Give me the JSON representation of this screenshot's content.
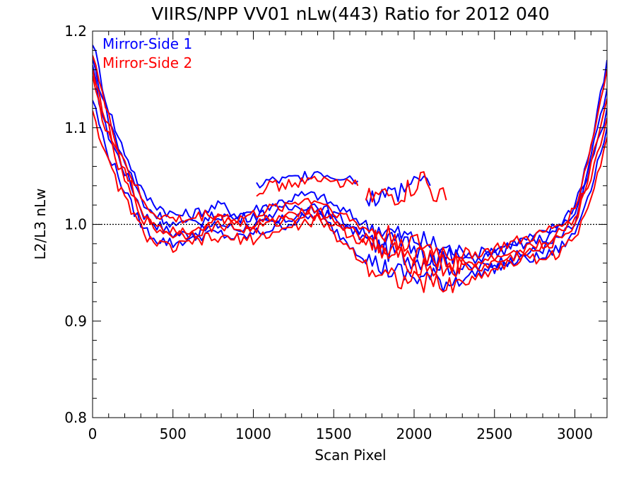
{
  "chart_data": {
    "type": "line",
    "title": "VIIRS/NPP VV01 nLw(443) Ratio for 2012 040",
    "xlabel": "Scan Pixel",
    "ylabel": "L2/L3 nLw",
    "xlim": [
      0,
      3200
    ],
    "ylim": [
      0.8,
      1.2
    ],
    "x_ticks": [
      {
        "value": 0,
        "label": "0"
      },
      {
        "value": 500,
        "label": "500"
      },
      {
        "value": 1000,
        "label": "1000"
      },
      {
        "value": 1500,
        "label": "1500"
      },
      {
        "value": 2000,
        "label": "2000"
      },
      {
        "value": 2500,
        "label": "2500"
      },
      {
        "value": 3000,
        "label": "3000"
      }
    ],
    "y_ticks": [
      {
        "value": 0.8,
        "label": "0.8"
      },
      {
        "value": 0.9,
        "label": "0.9"
      },
      {
        "value": 1.0,
        "label": "1.0"
      },
      {
        "value": 1.1,
        "label": "1.1"
      },
      {
        "value": 1.2,
        "label": "1.2"
      }
    ],
    "reference_line": {
      "y": 1.0,
      "style": "dotted",
      "color": "#000000"
    },
    "grid": false,
    "legend_position": "top-left",
    "legend": [
      {
        "label": "Mirror-Side 1",
        "color": "#0000ff"
      },
      {
        "label": "Mirror-Side 2",
        "color": "#ff0000"
      }
    ],
    "series": [
      {
        "mirror_side": 1,
        "color": "#0000ff",
        "x": [
          0,
          80,
          160,
          240,
          320,
          400,
          500,
          600,
          700,
          800,
          900,
          1000,
          1100,
          1200,
          1300,
          1400,
          1500,
          1600,
          1700,
          1800,
          1900,
          2000,
          2100,
          2200,
          2300,
          2400,
          2500,
          2600,
          2700,
          2800,
          2900,
          3000,
          3100,
          3200
        ],
        "y": [
          1.16,
          1.1,
          1.07,
          1.04,
          1.01,
          1.0,
          0.99,
          0.99,
          0.995,
          1.0,
          0.995,
          1.0,
          1.0,
          1.005,
          1.01,
          1.015,
          1.005,
          0.995,
          0.985,
          0.975,
          0.97,
          0.965,
          0.965,
          0.96,
          0.955,
          0.955,
          0.96,
          0.965,
          0.97,
          0.975,
          0.985,
          1.0,
          1.06,
          1.12
        ]
      },
      {
        "mirror_side": 1,
        "color": "#0000ff",
        "x": [
          0,
          80,
          160,
          240,
          320,
          400,
          500,
          600,
          700,
          800,
          900,
          1000,
          1100,
          1200,
          1300,
          1400,
          1500,
          1600,
          1700,
          1800,
          1900,
          2000,
          2100,
          2200,
          2300,
          2400,
          2500,
          2600,
          2700,
          2800,
          2900,
          3000,
          3100,
          3200
        ],
        "y": [
          1.19,
          1.13,
          1.09,
          1.06,
          1.03,
          1.02,
          1.01,
          1.01,
          1.015,
          1.02,
          1.01,
          1.015,
          1.02,
          1.025,
          1.03,
          1.03,
          1.02,
          1.01,
          1.0,
          0.995,
          0.99,
          0.985,
          0.98,
          0.975,
          0.97,
          0.97,
          0.975,
          0.98,
          0.985,
          0.99,
          1.0,
          1.02,
          1.08,
          1.17
        ]
      },
      {
        "mirror_side": 1,
        "color": "#0000ff",
        "x": [
          0,
          80,
          160,
          240,
          320,
          400,
          500,
          600,
          700,
          800,
          900,
          1000,
          1100,
          1200,
          1300,
          1400,
          1500,
          1600,
          1700,
          1800,
          1900,
          2000,
          2100,
          2200,
          2300,
          2400,
          2500,
          2600,
          2700,
          2800,
          2900,
          3000,
          3100,
          3200
        ],
        "y": [
          1.13,
          1.08,
          1.05,
          1.02,
          0.995,
          0.985,
          0.98,
          0.985,
          0.99,
          0.99,
          0.985,
          0.99,
          0.995,
          1.0,
          1.005,
          1.01,
          0.995,
          0.98,
          0.965,
          0.955,
          0.95,
          0.945,
          0.945,
          0.94,
          0.945,
          0.95,
          0.955,
          0.96,
          0.965,
          0.965,
          0.975,
          0.99,
          1.04,
          1.1
        ]
      },
      {
        "mirror_side": 1,
        "color": "#0000ff",
        "x": [
          0,
          80,
          160,
          240,
          320,
          400,
          500,
          600,
          700,
          800,
          900,
          1000,
          1100,
          1200,
          1300,
          1400,
          1500,
          1600,
          1700,
          1800,
          1900,
          2000,
          2100,
          2200,
          2300,
          2400,
          2500,
          2600,
          2700,
          2800,
          2900,
          3000,
          3100,
          3200
        ],
        "y": [
          1.17,
          1.12,
          1.08,
          1.05,
          1.02,
          1.01,
          1.0,
          1.0,
          1.005,
          1.01,
          1.005,
          1.01,
          1.01,
          1.015,
          1.02,
          1.02,
          1.01,
          1.0,
          0.99,
          0.985,
          0.98,
          0.975,
          0.97,
          0.965,
          0.965,
          0.965,
          0.97,
          0.975,
          0.98,
          0.985,
          0.995,
          1.01,
          1.07,
          1.14
        ]
      },
      {
        "mirror_side": 2,
        "color": "#ff0000",
        "x": [
          0,
          80,
          160,
          240,
          320,
          400,
          500,
          600,
          700,
          800,
          900,
          1000,
          1100,
          1200,
          1300,
          1400,
          1500,
          1600,
          1700,
          1800,
          1900,
          2000,
          2100,
          2200,
          2300,
          2400,
          2500,
          2600,
          2700,
          2800,
          2900,
          3000,
          3100,
          3200
        ],
        "y": [
          1.15,
          1.1,
          1.06,
          1.03,
          1.005,
          0.995,
          0.99,
          0.99,
          0.995,
          1.0,
          0.995,
          0.995,
          1.0,
          1.005,
          1.01,
          1.01,
          1.0,
          0.99,
          0.98,
          0.97,
          0.965,
          0.96,
          0.955,
          0.955,
          0.955,
          0.955,
          0.96,
          0.965,
          0.97,
          0.975,
          0.985,
          1.0,
          1.05,
          1.11
        ]
      },
      {
        "mirror_side": 2,
        "color": "#ff0000",
        "x": [
          0,
          80,
          160,
          240,
          320,
          400,
          500,
          600,
          700,
          800,
          900,
          1000,
          1100,
          1200,
          1300,
          1400,
          1500,
          1600,
          1700,
          1800,
          1900,
          2000,
          2100,
          2200,
          2300,
          2400,
          2500,
          2600,
          2700,
          2800,
          2900,
          3000,
          3100,
          3200
        ],
        "y": [
          1.18,
          1.12,
          1.08,
          1.05,
          1.02,
          1.01,
          1.005,
          1.005,
          1.01,
          1.01,
          1.005,
          1.01,
          1.015,
          1.02,
          1.025,
          1.025,
          1.015,
          1.005,
          0.995,
          0.99,
          0.985,
          0.98,
          0.975,
          0.97,
          0.97,
          0.97,
          0.975,
          0.98,
          0.985,
          0.99,
          1.0,
          1.015,
          1.08,
          1.16
        ]
      },
      {
        "mirror_side": 2,
        "color": "#ff0000",
        "x": [
          0,
          80,
          160,
          240,
          320,
          400,
          500,
          600,
          700,
          800,
          900,
          1000,
          1100,
          1200,
          1300,
          1400,
          1500,
          1600,
          1700,
          1800,
          1900,
          2000,
          2100,
          2200,
          2300,
          2400,
          2500,
          2600,
          2700,
          2800,
          2900,
          3000,
          3100,
          3200
        ],
        "y": [
          1.12,
          1.07,
          1.04,
          1.015,
          0.99,
          0.98,
          0.975,
          0.98,
          0.985,
          0.985,
          0.985,
          0.985,
          0.99,
          0.995,
          1.0,
          1.005,
          0.99,
          0.975,
          0.96,
          0.95,
          0.945,
          0.94,
          0.94,
          0.935,
          0.94,
          0.945,
          0.955,
          0.96,
          0.965,
          0.965,
          0.97,
          0.985,
          1.03,
          1.09
        ]
      },
      {
        "mirror_side": 2,
        "color": "#ff0000",
        "x": [
          0,
          80,
          160,
          240,
          320,
          400,
          500,
          600,
          700,
          800,
          900,
          1000,
          1100,
          1200,
          1300,
          1400,
          1500,
          1600,
          1700,
          1800,
          1900,
          2000,
          2100,
          2200,
          2300,
          2400,
          2500,
          2600,
          2700,
          2800,
          2900,
          3000,
          3100,
          3200
        ],
        "y": [
          1.16,
          1.11,
          1.07,
          1.04,
          1.01,
          1.0,
          0.995,
          0.995,
          1.0,
          1.005,
          1.0,
          1.0,
          1.005,
          1.01,
          1.015,
          1.015,
          1.005,
          0.995,
          0.985,
          0.98,
          0.975,
          0.97,
          0.965,
          0.96,
          0.96,
          0.96,
          0.965,
          0.97,
          0.975,
          0.98,
          0.99,
          1.005,
          1.06,
          1.13
        ]
      },
      {
        "mirror_side": 1,
        "color": "#0000ff",
        "x": [
          1020,
          1100,
          1200,
          1300,
          1400,
          1500,
          1600,
          1650
        ],
        "y": [
          1.04,
          1.045,
          1.045,
          1.05,
          1.055,
          1.05,
          1.05,
          1.045
        ]
      },
      {
        "mirror_side": 2,
        "color": "#ff0000",
        "x": [
          1020,
          1100,
          1200,
          1300,
          1400,
          1500,
          1600,
          1650
        ],
        "y": [
          1.035,
          1.04,
          1.04,
          1.045,
          1.045,
          1.045,
          1.04,
          1.04
        ]
      },
      {
        "mirror_side": 1,
        "color": "#0000ff",
        "x": [
          1700,
          1800,
          1900,
          2000,
          2060,
          2100
        ],
        "y": [
          1.03,
          1.03,
          1.035,
          1.045,
          1.055,
          1.04
        ]
      },
      {
        "mirror_side": 2,
        "color": "#ff0000",
        "x": [
          1700,
          1800,
          1900,
          2000,
          2060,
          2100,
          2200
        ],
        "y": [
          1.025,
          1.03,
          1.03,
          1.04,
          1.05,
          1.035,
          1.025
        ]
      }
    ]
  }
}
